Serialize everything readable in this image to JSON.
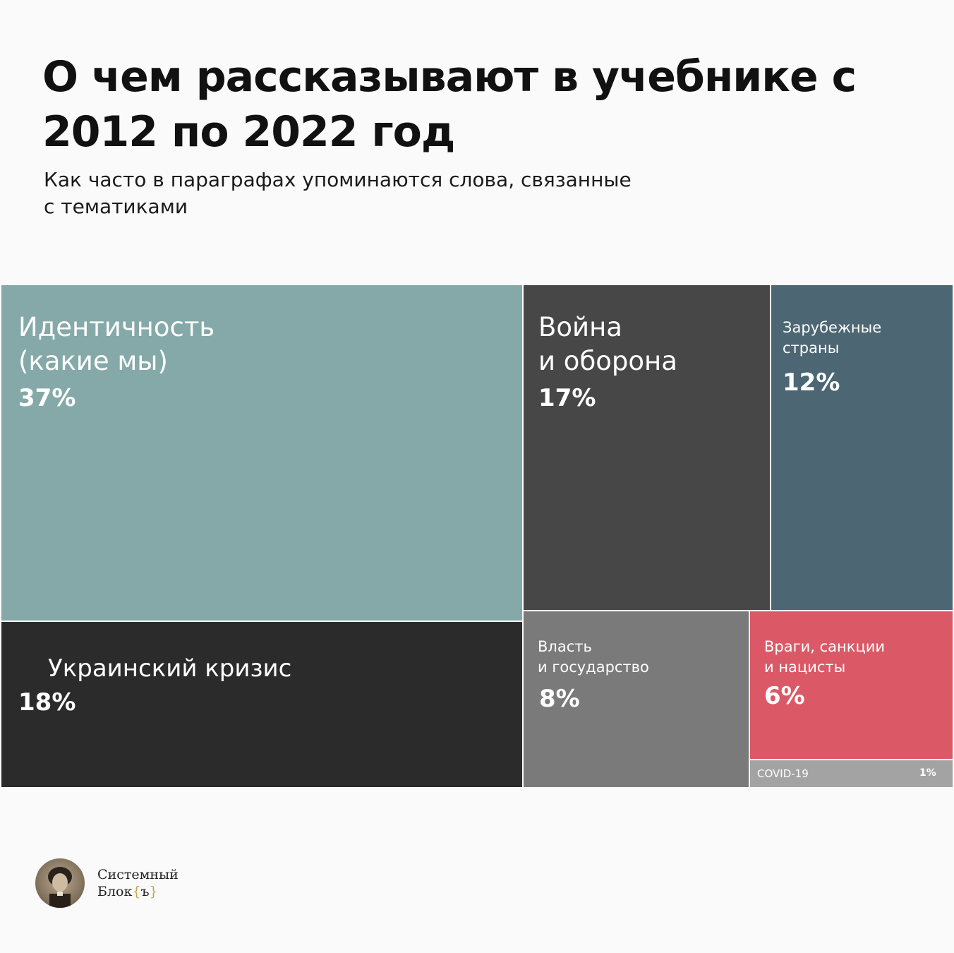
{
  "chart_data": {
    "type": "treemap",
    "title": "О чем рассказывают в учебнике с 2012 по 2022 год",
    "subtitle": "Как часто в параграфах упоминаются слова, связанные с тематиками",
    "unit": "%",
    "series": [
      {
        "name": "Идентичность\n(какие мы)",
        "value": 37,
        "value_label": "37%",
        "color": "#84a9a8"
      },
      {
        "name": "Украинский кризис",
        "value": 18,
        "value_label": "18%",
        "color": "#2b2b2b"
      },
      {
        "name": "Война\nи оборона",
        "value": 17,
        "value_label": "17%",
        "color": "#474747"
      },
      {
        "name": "Зарубежные\nстраны",
        "value": 12,
        "value_label": "12%",
        "color": "#4c6674"
      },
      {
        "name": "Власть\nи государство",
        "value": 8,
        "value_label": "8%",
        "color": "#7a7a7a"
      },
      {
        "name": "Враги, санкции\nи нацисты",
        "value": 6,
        "value_label": "6%",
        "color": "#db5966"
      },
      {
        "name": "COVID-19",
        "value": 1,
        "value_label": "1%",
        "color": "#a3a3a3"
      }
    ]
  },
  "brand": {
    "line1": "Системный",
    "line2_text": "Блок",
    "line2_brace_open": "{",
    "line2_letter": "ъ",
    "line2_brace_close": "}",
    "accent_color": "#c9a24e"
  }
}
